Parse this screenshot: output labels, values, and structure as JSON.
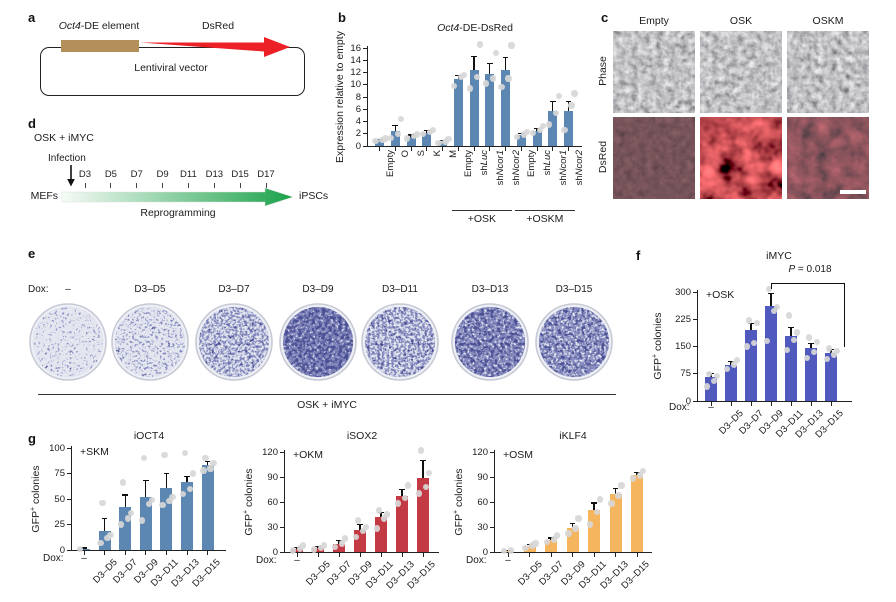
{
  "panels": {
    "a": {
      "label": "a",
      "element_label": "*Oct4*-DE element",
      "reporter_label": "DsRed",
      "vector_label": "Lentiviral vector",
      "element_color": "#b3905a",
      "arrow_color": "#ec2027"
    },
    "b": {
      "label": "b"
    },
    "c": {
      "label": "c",
      "columns": [
        "Empty",
        "OSK",
        "OSKM"
      ],
      "rows": [
        "Phase",
        "DsRed"
      ],
      "dsred_signal": [
        "none",
        "strong",
        "faint"
      ],
      "has_scale_bar": true
    },
    "d": {
      "label": "d",
      "condition": "OSK + iMYC",
      "infection_label": "Infection",
      "days": [
        "D3",
        "D5",
        "D7",
        "D9",
        "D11",
        "D13",
        "D15",
        "D17"
      ],
      "start_label": "MEFs",
      "end_label": "iPSCs",
      "arrow_caption": "Reprogramming",
      "arrow_color_start": "#f7fbf7",
      "arrow_color_end": "#1ba24a"
    },
    "e": {
      "label": "e",
      "dox_label": "Dox:",
      "dish_labels": [
        "–",
        "D3–D5",
        "D3–D7",
        "D3–D9",
        "D3–D11",
        "D3–D13",
        "D3–D15"
      ],
      "stain_density": [
        0.32,
        0.38,
        0.55,
        0.8,
        0.58,
        0.74,
        0.68
      ],
      "group_label": "OSK + iMYC",
      "stain_color": "#8287bd",
      "stain_color_dark": "#4a4f93"
    },
    "f": {
      "label": "f"
    },
    "g": {
      "label": "g"
    }
  },
  "chart_data": [
    {
      "id": "b",
      "type": "bar",
      "title": "*Oct4*-DE-DsRed",
      "ylabel": "Expression relative to empty",
      "ylim": [
        0,
        16
      ],
      "yticks": [
        0,
        2,
        4,
        6,
        8,
        10,
        12,
        14,
        16
      ],
      "categories": [
        "Empty",
        "O",
        "S",
        "K",
        "M",
        "Empty",
        "sh*Luc*",
        "sh*Ncor1*",
        "sh*Ncor2*",
        "Empty",
        "sh*Luc*",
        "sh*Ncor1*",
        "sh*Ncor2*"
      ],
      "values": [
        1.0,
        2.4,
        1.5,
        2.2,
        0.7,
        10.9,
        12.4,
        11.7,
        12.4,
        1.8,
        2.4,
        5.7,
        5.7
      ],
      "errors": [
        0.1,
        0.9,
        0.3,
        0.3,
        0.2,
        0.6,
        2.2,
        1.8,
        2.1,
        0.3,
        0.5,
        1.6,
        1.6
      ],
      "points": [
        [
          0.8,
          1.0,
          1.2
        ],
        [
          1.3,
          2.0,
          4.4
        ],
        [
          1.2,
          1.6,
          1.9
        ],
        [
          2.0,
          2.3,
          2.6
        ],
        [
          0.5,
          0.7,
          1.1
        ],
        [
          9.8,
          11.3,
          11.6
        ],
        [
          9.4,
          11.3,
          16.6
        ],
        [
          10.2,
          11.0,
          15.2
        ],
        [
          9.6,
          11.0,
          16.4
        ],
        [
          1.5,
          1.9,
          2.3
        ],
        [
          2.1,
          2.6,
          3.3
        ],
        [
          3.5,
          5.4,
          8.2
        ],
        [
          2.6,
          6.6,
          8.6
        ]
      ],
      "groups": [
        {
          "label": "+OSK",
          "from": 5,
          "to": 8
        },
        {
          "label": "+OSKM",
          "from": 9,
          "to": 12
        }
      ],
      "bar_color": "#5b87b2",
      "grid": false
    },
    {
      "id": "f",
      "type": "bar",
      "title": "iMYC",
      "inner_label": "+OSK",
      "annotation": {
        "text": "*P* = 0.018",
        "from": 3,
        "to": 6
      },
      "xprefix": "Dox:",
      "ylabel": "GFP^+^ colonies",
      "ylim": [
        0,
        300
      ],
      "yticks": [
        0,
        75,
        150,
        225,
        300
      ],
      "categories": [
        "–",
        "D3–D5",
        "D3–D7",
        "D3–D9",
        "D3–D11",
        "D3–D13",
        "D3–D15"
      ],
      "values": [
        65,
        100,
        195,
        262,
        180,
        145,
        132
      ],
      "errors": [
        12,
        10,
        18,
        35,
        22,
        14,
        10
      ],
      "points": [
        [
          40,
          55,
          68,
          75
        ],
        [
          88,
          100,
          112
        ],
        [
          150,
          160,
          215,
          222
        ],
        [
          165,
          248,
          258,
          308
        ],
        [
          140,
          168,
          188,
          235
        ],
        [
          118,
          135,
          162,
          175
        ],
        [
          115,
          128,
          138,
          145
        ]
      ],
      "bar_color": "#5059bd",
      "grid": false
    },
    {
      "id": "g1",
      "type": "bar",
      "title": "iOCT4",
      "inner_label": "+SKM",
      "xprefix": "Dox:",
      "ylabel": "GFP^+^ colonies",
      "ylim": [
        0,
        100
      ],
      "yticks": [
        0,
        25,
        50,
        75,
        100
      ],
      "categories": [
        "–",
        "D3–D5",
        "D3–D7",
        "D3–D9",
        "D3–D11",
        "D3–D13",
        "D3–D15"
      ],
      "values": [
        1,
        19,
        42,
        52,
        61,
        67,
        83
      ],
      "errors": [
        1,
        12,
        12,
        16,
        14,
        5,
        4
      ],
      "points": [
        [
          1
        ],
        [
          7,
          12,
          15,
          46
        ],
        [
          25,
          31,
          36,
          66
        ],
        [
          29,
          45,
          49,
          90
        ],
        [
          44,
          48,
          52,
          93
        ],
        [
          55,
          60,
          75,
          95
        ],
        [
          78,
          80,
          85,
          90
        ]
      ],
      "bar_color": "#5b87b2",
      "grid": false
    },
    {
      "id": "g2",
      "type": "bar",
      "title": "iSOX2",
      "inner_label": "+OKM",
      "xprefix": "Dox:",
      "ylabel": "GFP^+^ colonies",
      "ylim": [
        0,
        120
      ],
      "yticks": [
        0,
        30,
        60,
        90,
        120
      ],
      "categories": [
        "–",
        "D3–D5",
        "D3–D7",
        "D3–D9",
        "D3–D11",
        "D3–D13",
        "D3–D15"
      ],
      "values": [
        4,
        5,
        10,
        27,
        42,
        67,
        89
      ],
      "errors": [
        2,
        2,
        4,
        6,
        6,
        8,
        21
      ],
      "points": [
        [
          2,
          4,
          8
        ],
        [
          3,
          5,
          8
        ],
        [
          6,
          10,
          16
        ],
        [
          18,
          25,
          30,
          38
        ],
        [
          28,
          40,
          45,
          50
        ],
        [
          58,
          65,
          80
        ],
        [
          70,
          78,
          95,
          122
        ]
      ],
      "bar_color": "#c43a44",
      "grid": false
    },
    {
      "id": "g3",
      "type": "bar",
      "title": "iKLF4",
      "inner_label": "+OSM",
      "xprefix": "Dox:",
      "ylabel": "GFP^+^ colonies",
      "ylim": [
        0,
        120
      ],
      "yticks": [
        0,
        30,
        60,
        90,
        120
      ],
      "categories": [
        "–",
        "D3–D5",
        "D3–D7",
        "D3–D9",
        "D3–D11",
        "D3–D13",
        "D3–D15"
      ],
      "values": [
        1,
        7,
        14,
        29,
        50,
        70,
        92
      ],
      "errors": [
        1,
        2,
        3,
        5,
        9,
        6,
        4
      ],
      "points": [
        [
          1,
          2
        ],
        [
          5,
          8,
          10
        ],
        [
          12,
          15,
          20
        ],
        [
          22,
          28,
          40
        ],
        [
          33,
          48,
          63
        ],
        [
          58,
          68,
          80
        ],
        [
          88,
          92,
          97
        ]
      ],
      "bar_color": "#f5b55e",
      "grid": false
    }
  ]
}
